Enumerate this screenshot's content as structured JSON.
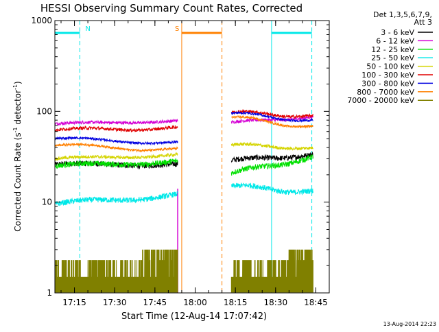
{
  "chart_data": {
    "type": "line",
    "title": "HESSI Observing Summary Count Rates, Corrected",
    "xlabel": "Start Time (12-Aug-14 17:07:42)",
    "ylabel_main": "Corrected Count Rate (s",
    "ylabel_sup1": "-1",
    "ylabel_mid": " detector",
    "ylabel_sup2": "-1",
    "ylabel_end": ")",
    "y_scale": "log",
    "ylim": [
      1,
      1000
    ],
    "xlim": [
      "17:07:42",
      "18:50:00"
    ],
    "x_ticks": [
      "17:15",
      "17:30",
      "17:45",
      "18:00",
      "18:15",
      "18:30",
      "18:45"
    ],
    "y_ticks": [
      "1",
      "10",
      "100",
      "1000"
    ],
    "date_stamp": "13-Aug-2014 22:23",
    "legend": {
      "placement": "top-right",
      "header1": "Det 1,3,5,6,7,9,",
      "header2": "Att 3"
    },
    "series": [
      {
        "name": "3 - 6 keV",
        "color": "#000000",
        "seg1": [
          26,
          26
        ],
        "seg2": [
          29,
          33
        ],
        "wave": 0.03,
        "noise": 0.07
      },
      {
        "name": "6 - 12 keV",
        "color": "#d400d4",
        "seg1": [
          73,
          78
        ],
        "seg2": [
          76,
          86
        ],
        "wave": 0.02,
        "noise": 0.04
      },
      {
        "name": "12 - 25 keV",
        "color": "#00e000",
        "seg1": [
          25,
          28
        ],
        "seg2": [
          21,
          31
        ],
        "wave": 0.04,
        "noise": 0.07
      },
      {
        "name": "25 - 50 keV",
        "color": "#00e8e8",
        "seg1": [
          9.5,
          12
        ],
        "seg2": [
          15,
          13
        ],
        "wave": 0.05,
        "noise": 0.07
      },
      {
        "name": "50 - 100 keV",
        "color": "#d4d400",
        "seg1": [
          30,
          33
        ],
        "seg2": [
          43,
          39
        ],
        "wave": 0.03,
        "noise": 0.04
      },
      {
        "name": "100 - 300 keV",
        "color": "#e00000",
        "seg1": [
          62,
          66
        ],
        "seg2": [
          98,
          88
        ],
        "wave": 0.04,
        "noise": 0.04
      },
      {
        "name": "300 - 800 keV",
        "color": "#0000e0",
        "seg1": [
          50,
          45
        ],
        "seg2": [
          96,
          78
        ],
        "wave": 0.04,
        "noise": 0.03
      },
      {
        "name": "800 - 7000 keV",
        "color": "#ff8000",
        "seg1": [
          42,
          38
        ],
        "seg2": [
          86,
          67
        ],
        "wave": 0.05,
        "noise": 0.03
      },
      {
        "name": "7000 - 20000 keV",
        "color": "#808000",
        "seg1": [
          1.5,
          2.3
        ],
        "seg2": [
          1.5,
          2.3
        ],
        "wave": 0,
        "noise": 0
      }
    ],
    "segments": {
      "seg1": [
        "17:07:42",
        "17:53:30"
      ],
      "seg2": [
        "18:13:30",
        "18:44:00"
      ]
    },
    "markers": [
      {
        "label": "N",
        "color": "#00e8e8",
        "bar": [
          "17:07:42",
          "17:17:00"
        ],
        "solid_line": "17:07:42",
        "dashed_line": "17:17:00"
      },
      {
        "label": "S",
        "color": "#ff8000",
        "bar": [
          "17:55:00",
          "18:10:00"
        ],
        "solid_line": "17:55:00",
        "dashed_line": "18:10:00"
      },
      {
        "label": "",
        "color": "#00e8e8",
        "bar": [
          "18:28:30",
          "18:43:30"
        ],
        "solid_line": "18:28:30",
        "dashed_line": "18:43:30"
      }
    ],
    "vline_magenta": "17:53:30"
  }
}
